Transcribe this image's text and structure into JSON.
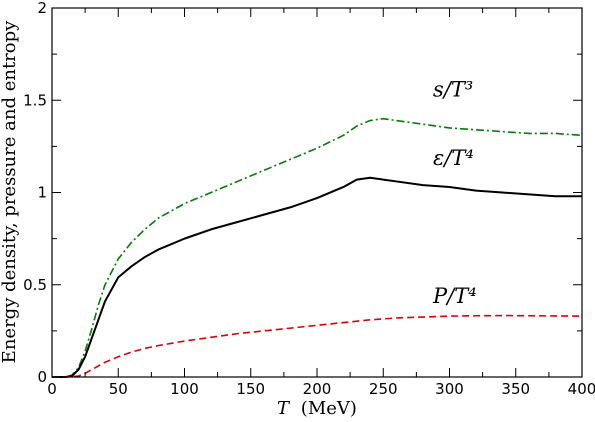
{
  "chart_data": {
    "type": "line",
    "xlabel": {
      "symbol": "T",
      "unit": "(MeV)"
    },
    "ylabel": "Energy density, pressure and entropy",
    "xlim": [
      0,
      400
    ],
    "ylim": [
      0,
      2
    ],
    "xticks": [
      0,
      50,
      100,
      150,
      200,
      250,
      300,
      350,
      400
    ],
    "yticks": [
      "0",
      "0.5",
      "1",
      "1.5",
      "2"
    ],
    "grid": false,
    "series": [
      {
        "name": "s/T³",
        "color": "#008000",
        "style": "dashdot",
        "points": [
          [
            0,
            0
          ],
          [
            10,
            0
          ],
          [
            15,
            0.01
          ],
          [
            20,
            0.05
          ],
          [
            25,
            0.14
          ],
          [
            30,
            0.26
          ],
          [
            35,
            0.39
          ],
          [
            40,
            0.5
          ],
          [
            50,
            0.64
          ],
          [
            60,
            0.73
          ],
          [
            70,
            0.8
          ],
          [
            80,
            0.86
          ],
          [
            90,
            0.9
          ],
          [
            100,
            0.94
          ],
          [
            120,
            1.0
          ],
          [
            140,
            1.06
          ],
          [
            160,
            1.12
          ],
          [
            180,
            1.18
          ],
          [
            200,
            1.24
          ],
          [
            220,
            1.31
          ],
          [
            230,
            1.36
          ],
          [
            240,
            1.39
          ],
          [
            250,
            1.4
          ],
          [
            260,
            1.39
          ],
          [
            280,
            1.37
          ],
          [
            300,
            1.35
          ],
          [
            320,
            1.34
          ],
          [
            340,
            1.33
          ],
          [
            360,
            1.32
          ],
          [
            380,
            1.32
          ],
          [
            400,
            1.31
          ]
        ]
      },
      {
        "name": "ε/T⁴",
        "color": "#000000",
        "style": "solid",
        "points": [
          [
            0,
            0
          ],
          [
            10,
            0
          ],
          [
            15,
            0.005
          ],
          [
            20,
            0.04
          ],
          [
            25,
            0.11
          ],
          [
            30,
            0.21
          ],
          [
            35,
            0.31
          ],
          [
            40,
            0.41
          ],
          [
            50,
            0.54
          ],
          [
            60,
            0.6
          ],
          [
            70,
            0.65
          ],
          [
            80,
            0.69
          ],
          [
            90,
            0.72
          ],
          [
            100,
            0.75
          ],
          [
            120,
            0.8
          ],
          [
            140,
            0.84
          ],
          [
            160,
            0.88
          ],
          [
            180,
            0.92
          ],
          [
            200,
            0.97
          ],
          [
            220,
            1.03
          ],
          [
            230,
            1.07
          ],
          [
            240,
            1.08
          ],
          [
            250,
            1.07
          ],
          [
            260,
            1.06
          ],
          [
            280,
            1.04
          ],
          [
            300,
            1.03
          ],
          [
            320,
            1.01
          ],
          [
            340,
            1.0
          ],
          [
            360,
            0.99
          ],
          [
            380,
            0.98
          ],
          [
            400,
            0.98
          ]
        ]
      },
      {
        "name": "P/T⁴",
        "color": "#e00000",
        "style": "dashed",
        "points": [
          [
            0,
            0
          ],
          [
            10,
            0
          ],
          [
            20,
            0.005
          ],
          [
            25,
            0.02
          ],
          [
            30,
            0.04
          ],
          [
            40,
            0.08
          ],
          [
            50,
            0.11
          ],
          [
            60,
            0.135
          ],
          [
            70,
            0.155
          ],
          [
            80,
            0.17
          ],
          [
            100,
            0.195
          ],
          [
            120,
            0.215
          ],
          [
            140,
            0.235
          ],
          [
            160,
            0.25
          ],
          [
            180,
            0.265
          ],
          [
            200,
            0.28
          ],
          [
            220,
            0.295
          ],
          [
            240,
            0.31
          ],
          [
            260,
            0.32
          ],
          [
            280,
            0.325
          ],
          [
            300,
            0.33
          ],
          [
            320,
            0.332
          ],
          [
            340,
            0.333
          ],
          [
            360,
            0.332
          ],
          [
            380,
            0.331
          ],
          [
            400,
            0.33
          ]
        ]
      }
    ],
    "labels": [
      {
        "text": "s/T³",
        "series": 0,
        "at": [
          280,
          1.52
        ]
      },
      {
        "text": "ε/T⁴",
        "series": 1,
        "at": [
          280,
          1.15
        ]
      },
      {
        "text": "P/T⁴",
        "series": 2,
        "at": [
          280,
          0.4
        ]
      }
    ]
  }
}
